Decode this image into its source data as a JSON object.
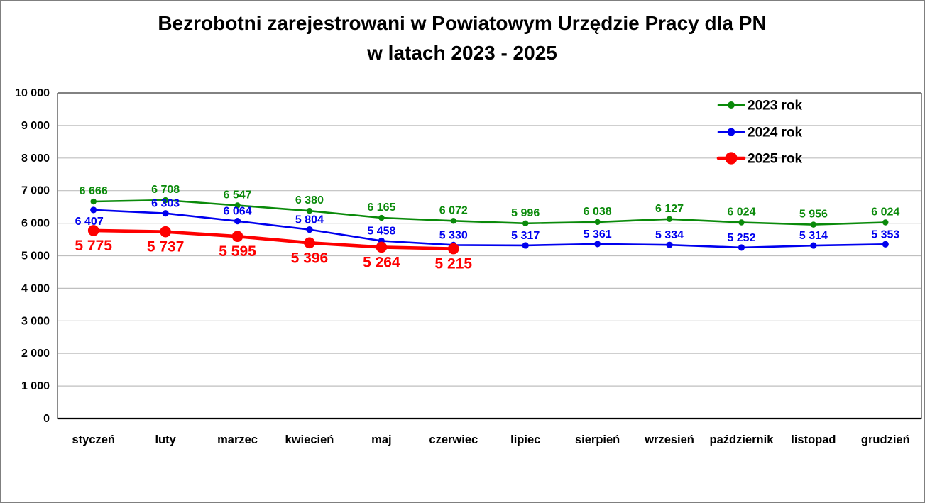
{
  "title": {
    "line1": "Bezrobotni zarejestrowani w Powiatowym Urzędzie Pracy dla PN",
    "line2": "w latach 2023 - 2025"
  },
  "colors": {
    "green": "#0a8a0a",
    "blue": "#0000ee",
    "red": "#fe0000",
    "gridline": "#bfbfbf",
    "plot_border": "#595959",
    "axis_line": "#000000",
    "outer_frame": "#7f7f7f",
    "text": "#000000"
  },
  "chart_data": {
    "type": "line",
    "title": "Bezrobotni zarejestrowani w Powiatowym Urzędzie Pracy dla PN w latach 2023 - 2025",
    "xlabel": "",
    "ylabel": "",
    "ylim": [
      0,
      10000
    ],
    "ytick_step": 1000,
    "grid": true,
    "legend_position": "top-right",
    "ytick_labels": [
      "0",
      "1 000",
      "2 000",
      "3 000",
      "4 000",
      "5 000",
      "6 000",
      "7 000",
      "8 000",
      "9 000",
      "10 000"
    ],
    "categories": [
      "styczeń",
      "luty",
      "marzec",
      "kwiecień",
      "maj",
      "czerwiec",
      "lipiec",
      "sierpień",
      "wrzesień",
      "październik",
      "listopad",
      "grudzień"
    ],
    "series": [
      {
        "name": "2023 rok",
        "color": "#0a8a0a",
        "values": [
          6666,
          6708,
          6547,
          6380,
          6165,
          6072,
          5996,
          6038,
          6127,
          6024,
          5956,
          6024
        ],
        "labels": [
          "6 666",
          "6 708",
          "6 547",
          "6 380",
          "6 165",
          "6 072",
          "5 996",
          "6 038",
          "6 127",
          "6 024",
          "5 956",
          "6 024"
        ]
      },
      {
        "name": "2024 rok",
        "color": "#0000ee",
        "values": [
          6407,
          6303,
          6064,
          5804,
          5458,
          5330,
          5317,
          5361,
          5334,
          5252,
          5314,
          5353
        ],
        "labels": [
          "6 407",
          "6 303",
          "6 064",
          "5 804",
          "5 458",
          "5 330",
          "5 317",
          "5 361",
          "5 334",
          "5 252",
          "5 314",
          "5 353"
        ]
      },
      {
        "name": "2025 rok",
        "color": "#fe0000",
        "values": [
          5775,
          5737,
          5595,
          5396,
          5264,
          5215
        ],
        "labels": [
          "5 775",
          "5 737",
          "5 595",
          "5 396",
          "5 264",
          "5 215"
        ]
      }
    ]
  }
}
